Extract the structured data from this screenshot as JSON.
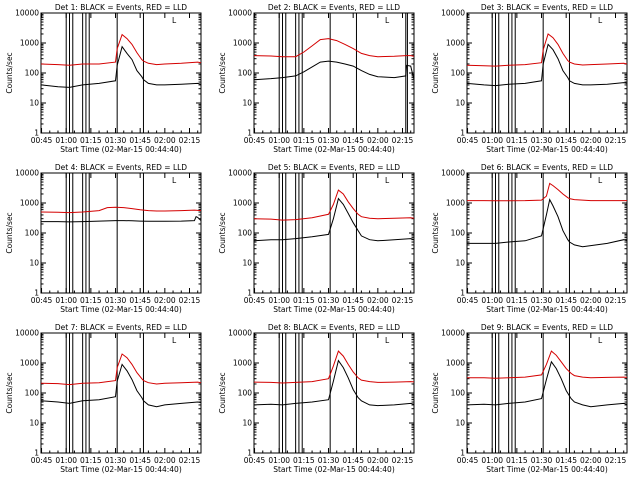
{
  "chart_data": [
    {
      "type": "line",
      "title": "Det 1: BLACK = Events, RED = LLD",
      "xlabel": "Start Time (02-Mar-15 00:44:40)",
      "ylabel": "Counts/sec",
      "yscale": "log",
      "ylim": [
        1,
        10000
      ],
      "xlim": [
        44.67,
        142
      ],
      "xticks": [
        "00:45",
        "01:00",
        "01:15",
        "01:30",
        "01:45",
        "02:00",
        "02:15"
      ],
      "yticks": [
        "1",
        "10",
        "100",
        "1000",
        "10000"
      ],
      "legend_mark": "L",
      "vlines": [
        60,
        62,
        64,
        70,
        72,
        74,
        91,
        107
      ],
      "series": [
        {
          "color": "#d40000",
          "x": [
            44.7,
            55,
            62,
            70,
            80,
            90,
            91,
            94,
            97,
            100,
            103,
            106,
            107,
            110,
            115,
            120,
            130,
            140,
            142
          ],
          "y": [
            200,
            190,
            180,
            200,
            200,
            230,
            650,
            1900,
            1400,
            900,
            480,
            280,
            250,
            210,
            190,
            200,
            210,
            230,
            220
          ]
        },
        {
          "color": "#000000",
          "x": [
            44.7,
            55,
            62,
            70,
            80,
            90,
            91,
            94,
            97,
            100,
            103,
            106,
            107,
            110,
            115,
            120,
            130,
            140,
            142
          ],
          "y": [
            40,
            35,
            33,
            40,
            45,
            55,
            180,
            750,
            450,
            280,
            120,
            75,
            60,
            45,
            40,
            40,
            42,
            45,
            42
          ]
        }
      ]
    },
    {
      "type": "line",
      "title": "Det 2: BLACK = Events, RED = LLD",
      "xlabel": "Start Time (02-Mar-15 00:44:40)",
      "ylabel": "Counts/sec",
      "yscale": "log",
      "ylim": [
        1,
        10000
      ],
      "xlim": [
        44.67,
        142
      ],
      "xticks": [
        "00:45",
        "01:00",
        "01:15",
        "01:30",
        "01:45",
        "02:00",
        "02:15"
      ],
      "yticks": [
        "1",
        "10",
        "100",
        "1000",
        "10000"
      ],
      "legend_mark": "L",
      "vlines": [
        60,
        62,
        64,
        70,
        72,
        74,
        91,
        107,
        137,
        138
      ],
      "series": [
        {
          "color": "#d40000",
          "x": [
            44.7,
            55,
            62,
            70,
            75,
            80,
            85,
            90,
            95,
            100,
            105,
            110,
            115,
            120,
            130,
            137,
            140,
            142
          ],
          "y": [
            380,
            370,
            350,
            350,
            500,
            800,
            1300,
            1400,
            1200,
            900,
            650,
            450,
            380,
            350,
            360,
            380,
            380,
            360
          ]
        },
        {
          "color": "#000000",
          "x": [
            44.7,
            55,
            62,
            70,
            75,
            80,
            85,
            90,
            95,
            100,
            105,
            110,
            115,
            120,
            130,
            137,
            137.5,
            140,
            142
          ],
          "y": [
            60,
            65,
            70,
            80,
            110,
            160,
            230,
            250,
            230,
            200,
            170,
            120,
            90,
            75,
            70,
            80,
            180,
            170,
            60
          ]
        }
      ]
    },
    {
      "type": "line",
      "title": "Det 3: BLACK = Events, RED = LLD",
      "xlabel": "Start Time (02-Mar-15 00:44:40)",
      "ylabel": "Counts/sec",
      "yscale": "log",
      "ylim": [
        1,
        10000
      ],
      "xlim": [
        44.67,
        142
      ],
      "xticks": [
        "00:45",
        "01:00",
        "01:15",
        "01:30",
        "01:45",
        "02:00",
        "02:15"
      ],
      "yticks": [
        "1",
        "10",
        "100",
        "1000",
        "10000"
      ],
      "legend_mark": "L",
      "vlines": [
        60,
        62,
        64,
        70,
        72,
        74,
        91,
        107
      ],
      "series": [
        {
          "color": "#d40000",
          "x": [
            44.7,
            55,
            62,
            70,
            80,
            90,
            91,
            94,
            97,
            100,
            103,
            106,
            107,
            110,
            115,
            120,
            130,
            140,
            142
          ],
          "y": [
            180,
            175,
            170,
            180,
            190,
            220,
            600,
            2000,
            1500,
            900,
            450,
            260,
            230,
            200,
            185,
            190,
            200,
            210,
            200
          ]
        },
        {
          "color": "#000000",
          "x": [
            44.7,
            55,
            62,
            70,
            80,
            90,
            91,
            94,
            97,
            100,
            103,
            106,
            107,
            110,
            115,
            120,
            130,
            140,
            142
          ],
          "y": [
            45,
            40,
            38,
            42,
            45,
            55,
            200,
            900,
            600,
            300,
            120,
            70,
            55,
            45,
            40,
            40,
            42,
            48,
            45
          ]
        }
      ]
    },
    {
      "type": "line",
      "title": "Det 4: BLACK = Events, RED = LLD",
      "xlabel": "Start Time (02-Mar-15 00:44:40)",
      "ylabel": "Counts/sec",
      "yscale": "log",
      "ylim": [
        1,
        10000
      ],
      "xlim": [
        44.67,
        142
      ],
      "xticks": [
        "00:45",
        "01:00",
        "01:15",
        "01:30",
        "01:45",
        "02:00",
        "02:15"
      ],
      "yticks": [
        "1",
        "10",
        "100",
        "1000",
        "10000"
      ],
      "legend_mark": "L",
      "vlines": [
        60,
        62,
        64,
        70,
        72,
        74,
        91,
        107
      ],
      "series": [
        {
          "color": "#d40000",
          "x": [
            44.7,
            55,
            62,
            70,
            80,
            85,
            90,
            95,
            100,
            105,
            110,
            115,
            120,
            130,
            138,
            142
          ],
          "y": [
            500,
            490,
            480,
            500,
            560,
            700,
            720,
            700,
            650,
            600,
            560,
            540,
            540,
            560,
            580,
            560
          ]
        },
        {
          "color": "#000000",
          "x": [
            44.7,
            55,
            62,
            70,
            80,
            90,
            95,
            100,
            105,
            110,
            120,
            130,
            138,
            139,
            140,
            142
          ],
          "y": [
            240,
            240,
            235,
            240,
            250,
            260,
            260,
            255,
            250,
            245,
            245,
            250,
            260,
            350,
            330,
            260
          ]
        }
      ]
    },
    {
      "type": "line",
      "title": "Det 5: BLACK = Events, RED = LLD",
      "xlabel": "Start Time (02-Mar-15 00:44:40)",
      "ylabel": "Counts/sec",
      "yscale": "log",
      "ylim": [
        1,
        10000
      ],
      "xlim": [
        44.67,
        142
      ],
      "xticks": [
        "00:45",
        "01:00",
        "01:15",
        "01:30",
        "01:45",
        "02:00",
        "02:15"
      ],
      "yticks": [
        "1",
        "10",
        "100",
        "1000",
        "10000"
      ],
      "legend_mark": "L",
      "vlines": [
        60,
        62,
        64,
        70,
        72,
        74,
        91,
        107
      ],
      "series": [
        {
          "color": "#d40000",
          "x": [
            44.7,
            55,
            62,
            70,
            80,
            90,
            93,
            96,
            99,
            102,
            105,
            108,
            110,
            115,
            120,
            130,
            140,
            142
          ],
          "y": [
            300,
            290,
            270,
            280,
            320,
            420,
            900,
            2700,
            2000,
            1100,
            650,
            420,
            350,
            310,
            300,
            310,
            320,
            310
          ]
        },
        {
          "color": "#000000",
          "x": [
            44.7,
            55,
            62,
            70,
            80,
            90,
            93,
            96,
            99,
            102,
            105,
            108,
            110,
            115,
            120,
            130,
            140,
            142
          ],
          "y": [
            55,
            60,
            60,
            65,
            75,
            90,
            300,
            1400,
            900,
            450,
            220,
            120,
            80,
            60,
            55,
            60,
            65,
            60
          ]
        }
      ]
    },
    {
      "type": "line",
      "title": "Det 6: BLACK = Events, RED = LLD",
      "xlabel": "Start Time (02-Mar-15 00:44:40)",
      "ylabel": "Counts/sec",
      "yscale": "log",
      "ylim": [
        1,
        10000
      ],
      "xlim": [
        44.67,
        142
      ],
      "xticks": [
        "00:45",
        "01:00",
        "01:15",
        "01:30",
        "01:45",
        "02:00",
        "02:15"
      ],
      "yticks": [
        "1",
        "10",
        "100",
        "1000",
        "10000"
      ],
      "legend_mark": "L",
      "vlines": [
        60,
        62,
        64,
        70,
        72,
        74,
        91,
        107
      ],
      "series": [
        {
          "color": "#d40000",
          "x": [
            44.7,
            55,
            62,
            70,
            80,
            90,
            93,
            95,
            97,
            100,
            103,
            106,
            107,
            110,
            115,
            120,
            130,
            140,
            142
          ],
          "y": [
            1200,
            1200,
            1180,
            1190,
            1200,
            1250,
            1700,
            4500,
            3800,
            2800,
            2000,
            1500,
            1400,
            1300,
            1250,
            1200,
            1200,
            1200,
            1200
          ]
        },
        {
          "color": "#000000",
          "x": [
            44.7,
            55,
            62,
            70,
            80,
            90,
            93,
            95,
            97,
            100,
            103,
            106,
            107,
            110,
            115,
            120,
            130,
            140,
            142
          ],
          "y": [
            45,
            45,
            45,
            50,
            55,
            80,
            400,
            1300,
            800,
            350,
            120,
            60,
            50,
            40,
            35,
            38,
            45,
            60,
            55
          ]
        }
      ]
    },
    {
      "type": "line",
      "title": "Det 7: BLACK = Events, RED = LLD",
      "xlabel": "Start Time (02-Mar-15 00:44:40)",
      "ylabel": "Counts/sec",
      "yscale": "log",
      "ylim": [
        1,
        10000
      ],
      "xlim": [
        44.67,
        142
      ],
      "xticks": [
        "00:45",
        "01:00",
        "01:15",
        "01:30",
        "01:45",
        "02:00",
        "02:15"
      ],
      "yticks": [
        "1",
        "10",
        "100",
        "1000",
        "10000"
      ],
      "legend_mark": "L",
      "vlines": [
        60,
        62,
        64,
        70,
        72,
        74,
        91,
        107
      ],
      "series": [
        {
          "color": "#d40000",
          "x": [
            44.7,
            55,
            62,
            70,
            80,
            90,
            91,
            94,
            97,
            100,
            103,
            106,
            107,
            110,
            115,
            120,
            130,
            140,
            142
          ],
          "y": [
            210,
            205,
            190,
            210,
            220,
            260,
            700,
            2000,
            1500,
            900,
            480,
            300,
            260,
            220,
            200,
            210,
            220,
            230,
            220
          ]
        },
        {
          "color": "#000000",
          "x": [
            44.7,
            55,
            62,
            70,
            80,
            90,
            91,
            94,
            97,
            100,
            103,
            106,
            107,
            110,
            115,
            120,
            130,
            140,
            142
          ],
          "y": [
            55,
            50,
            45,
            55,
            60,
            75,
            250,
            900,
            550,
            280,
            120,
            70,
            55,
            40,
            35,
            40,
            45,
            50,
            48
          ]
        }
      ]
    },
    {
      "type": "line",
      "title": "Det 8: BLACK = Events, RED = LLD",
      "xlabel": "Start Time (02-Mar-15 00:44:40)",
      "ylabel": "Counts/sec",
      "yscale": "log",
      "ylim": [
        1,
        10000
      ],
      "xlim": [
        44.67,
        142
      ],
      "xticks": [
        "00:45",
        "01:00",
        "01:15",
        "01:30",
        "01:45",
        "02:00",
        "02:15"
      ],
      "yticks": [
        "1",
        "10",
        "100",
        "1000",
        "10000"
      ],
      "legend_mark": "L",
      "vlines": [
        60,
        62,
        64,
        70,
        72,
        74,
        91,
        107
      ],
      "series": [
        {
          "color": "#d40000",
          "x": [
            44.7,
            55,
            62,
            70,
            80,
            90,
            93,
            96,
            99,
            102,
            105,
            108,
            110,
            115,
            120,
            130,
            140,
            142
          ],
          "y": [
            230,
            225,
            215,
            225,
            240,
            300,
            800,
            2500,
            1700,
            900,
            500,
            320,
            270,
            240,
            225,
            230,
            240,
            235
          ]
        },
        {
          "color": "#000000",
          "x": [
            44.7,
            55,
            62,
            70,
            80,
            90,
            93,
            96,
            99,
            102,
            105,
            108,
            110,
            115,
            120,
            130,
            140,
            142
          ],
          "y": [
            40,
            42,
            40,
            45,
            50,
            60,
            250,
            1200,
            700,
            320,
            130,
            70,
            55,
            40,
            38,
            40,
            45,
            42
          ]
        }
      ]
    },
    {
      "type": "line",
      "title": "Det 9: BLACK = Events, RED = LLD",
      "xlabel": "Start Time (02-Mar-15 00:44:40)",
      "ylabel": "Counts/sec",
      "yscale": "log",
      "ylim": [
        1,
        10000
      ],
      "xlim": [
        44.67,
        142
      ],
      "xticks": [
        "00:45",
        "01:00",
        "01:15",
        "01:30",
        "01:45",
        "02:00",
        "02:15"
      ],
      "yticks": [
        "1",
        "10",
        "100",
        "1000",
        "10000"
      ],
      "legend_mark": "L",
      "vlines": [
        60,
        62,
        64,
        70,
        72,
        74,
        91,
        107
      ],
      "series": [
        {
          "color": "#d40000",
          "x": [
            44.7,
            55,
            62,
            70,
            80,
            90,
            93,
            96,
            99,
            102,
            105,
            108,
            110,
            115,
            120,
            130,
            140,
            142
          ],
          "y": [
            320,
            320,
            310,
            320,
            340,
            400,
            900,
            2500,
            1800,
            1100,
            650,
            450,
            380,
            340,
            320,
            330,
            340,
            330
          ]
        },
        {
          "color": "#000000",
          "x": [
            44.7,
            55,
            62,
            70,
            80,
            90,
            93,
            96,
            99,
            102,
            105,
            108,
            110,
            115,
            120,
            130,
            140,
            142
          ],
          "y": [
            40,
            42,
            40,
            45,
            50,
            65,
            280,
            1100,
            650,
            300,
            120,
            65,
            50,
            40,
            35,
            40,
            45,
            42
          ]
        }
      ]
    }
  ]
}
